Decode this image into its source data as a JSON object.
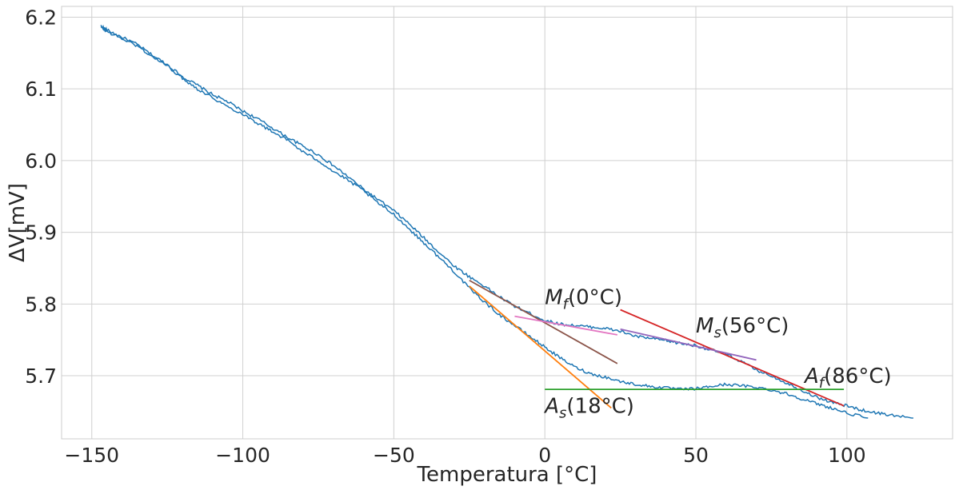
{
  "chart_data": {
    "type": "line",
    "title": "",
    "xlabel": "Temperatura [°C]",
    "ylabel": "ΔV[mV]",
    "xlim": [
      -160,
      135
    ],
    "ylim": [
      5.612,
      6.215
    ],
    "xticks": [
      -150,
      -100,
      -50,
      0,
      50,
      100
    ],
    "yticks": [
      5.7,
      5.8,
      5.9,
      6.0,
      6.1,
      6.2
    ],
    "xtick_labels": [
      "−150",
      "−100",
      "−50",
      "0",
      "50",
      "100"
    ],
    "ytick_labels": [
      "5.7",
      "5.8",
      "5.9",
      "6.0",
      "6.1",
      "6.2"
    ],
    "grid": true,
    "series": [
      {
        "color": "#1f77b4",
        "x": [
          -147,
          -145,
          -140,
          -135,
          -130,
          -125,
          -120,
          -115,
          -110,
          -105,
          -100,
          -95,
          -90,
          -85,
          -80,
          -75,
          -70,
          -65,
          -60,
          -55,
          -50,
          -45,
          -40,
          -35,
          -30,
          -25,
          -20,
          -15,
          -10,
          -5,
          0,
          5,
          10,
          15,
          20,
          25,
          30,
          35,
          40,
          45,
          50,
          55,
          60,
          65,
          70,
          75,
          80,
          85,
          90,
          95,
          100,
          105,
          110,
          115,
          122
        ],
        "y": [
          6.188,
          6.182,
          6.172,
          6.162,
          6.147,
          6.134,
          6.117,
          6.105,
          6.092,
          6.082,
          6.069,
          6.058,
          6.045,
          6.032,
          6.02,
          6.008,
          5.993,
          5.977,
          5.96,
          5.945,
          5.93,
          5.912,
          5.892,
          5.872,
          5.853,
          5.838,
          5.825,
          5.81,
          5.797,
          5.787,
          5.777,
          5.772,
          5.77,
          5.768,
          5.766,
          5.762,
          5.755,
          5.752,
          5.749,
          5.745,
          5.742,
          5.736,
          5.73,
          5.72,
          5.708,
          5.7,
          5.69,
          5.68,
          5.67,
          5.663,
          5.658,
          5.652,
          5.648,
          5.645,
          5.641
        ]
      },
      {
        "color": "#1f77b4",
        "x": [
          -147,
          -145,
          -140,
          -135,
          -130,
          -125,
          -120,
          -115,
          -110,
          -105,
          -100,
          -95,
          -90,
          -85,
          -80,
          -75,
          -70,
          -65,
          -60,
          -55,
          -50,
          -45,
          -40,
          -35,
          -30,
          -25,
          -20,
          -15,
          -10,
          -5,
          0,
          5,
          10,
          15,
          20,
          25,
          30,
          35,
          40,
          45,
          50,
          55,
          60,
          65,
          70,
          75,
          80,
          85,
          90,
          95,
          100,
          107
        ],
        "y": [
          6.186,
          6.18,
          6.17,
          6.16,
          6.145,
          6.132,
          6.115,
          6.1,
          6.088,
          6.075,
          6.065,
          6.052,
          6.04,
          6.028,
          6.012,
          6.0,
          5.985,
          5.972,
          5.958,
          5.94,
          5.925,
          5.905,
          5.885,
          5.865,
          5.845,
          5.822,
          5.803,
          5.785,
          5.77,
          5.755,
          5.74,
          5.725,
          5.712,
          5.703,
          5.698,
          5.692,
          5.688,
          5.685,
          5.683,
          5.681,
          5.682,
          5.685,
          5.688,
          5.686,
          5.684,
          5.68,
          5.675,
          5.668,
          5.661,
          5.655,
          5.648,
          5.641
        ]
      }
    ],
    "tangent_lines": [
      {
        "color": "#ff7f0e",
        "x": [
          -25,
          22
        ],
        "y": [
          5.825,
          5.655
        ]
      },
      {
        "color": "#8c564b",
        "x": [
          -25,
          24
        ],
        "y": [
          5.833,
          5.717
        ]
      },
      {
        "color": "#e377c2",
        "x": [
          -10,
          24
        ],
        "y": [
          5.783,
          5.757
        ]
      },
      {
        "color": "#d62728",
        "x": [
          25,
          99
        ],
        "y": [
          5.792,
          5.658
        ]
      },
      {
        "color": "#9467bd",
        "x": [
          25,
          70
        ],
        "y": [
          5.765,
          5.722
        ]
      },
      {
        "color": "#2ca02c",
        "x": [
          0,
          99
        ],
        "y": [
          5.681,
          5.681
        ]
      }
    ],
    "annotations": [
      {
        "sym": "M",
        "sub": "f",
        "val": "(0°C)",
        "x": 0,
        "y": 5.8
      },
      {
        "sym": "M",
        "sub": "s",
        "val": "(56°C)",
        "x": 50,
        "y": 5.76
      },
      {
        "sym": "A",
        "sub": "f",
        "val": "(86°C)",
        "x": 86,
        "y": 5.69
      },
      {
        "sym": "A",
        "sub": "s",
        "val": "(18°C)",
        "x": 0,
        "y": 5.648
      }
    ]
  }
}
